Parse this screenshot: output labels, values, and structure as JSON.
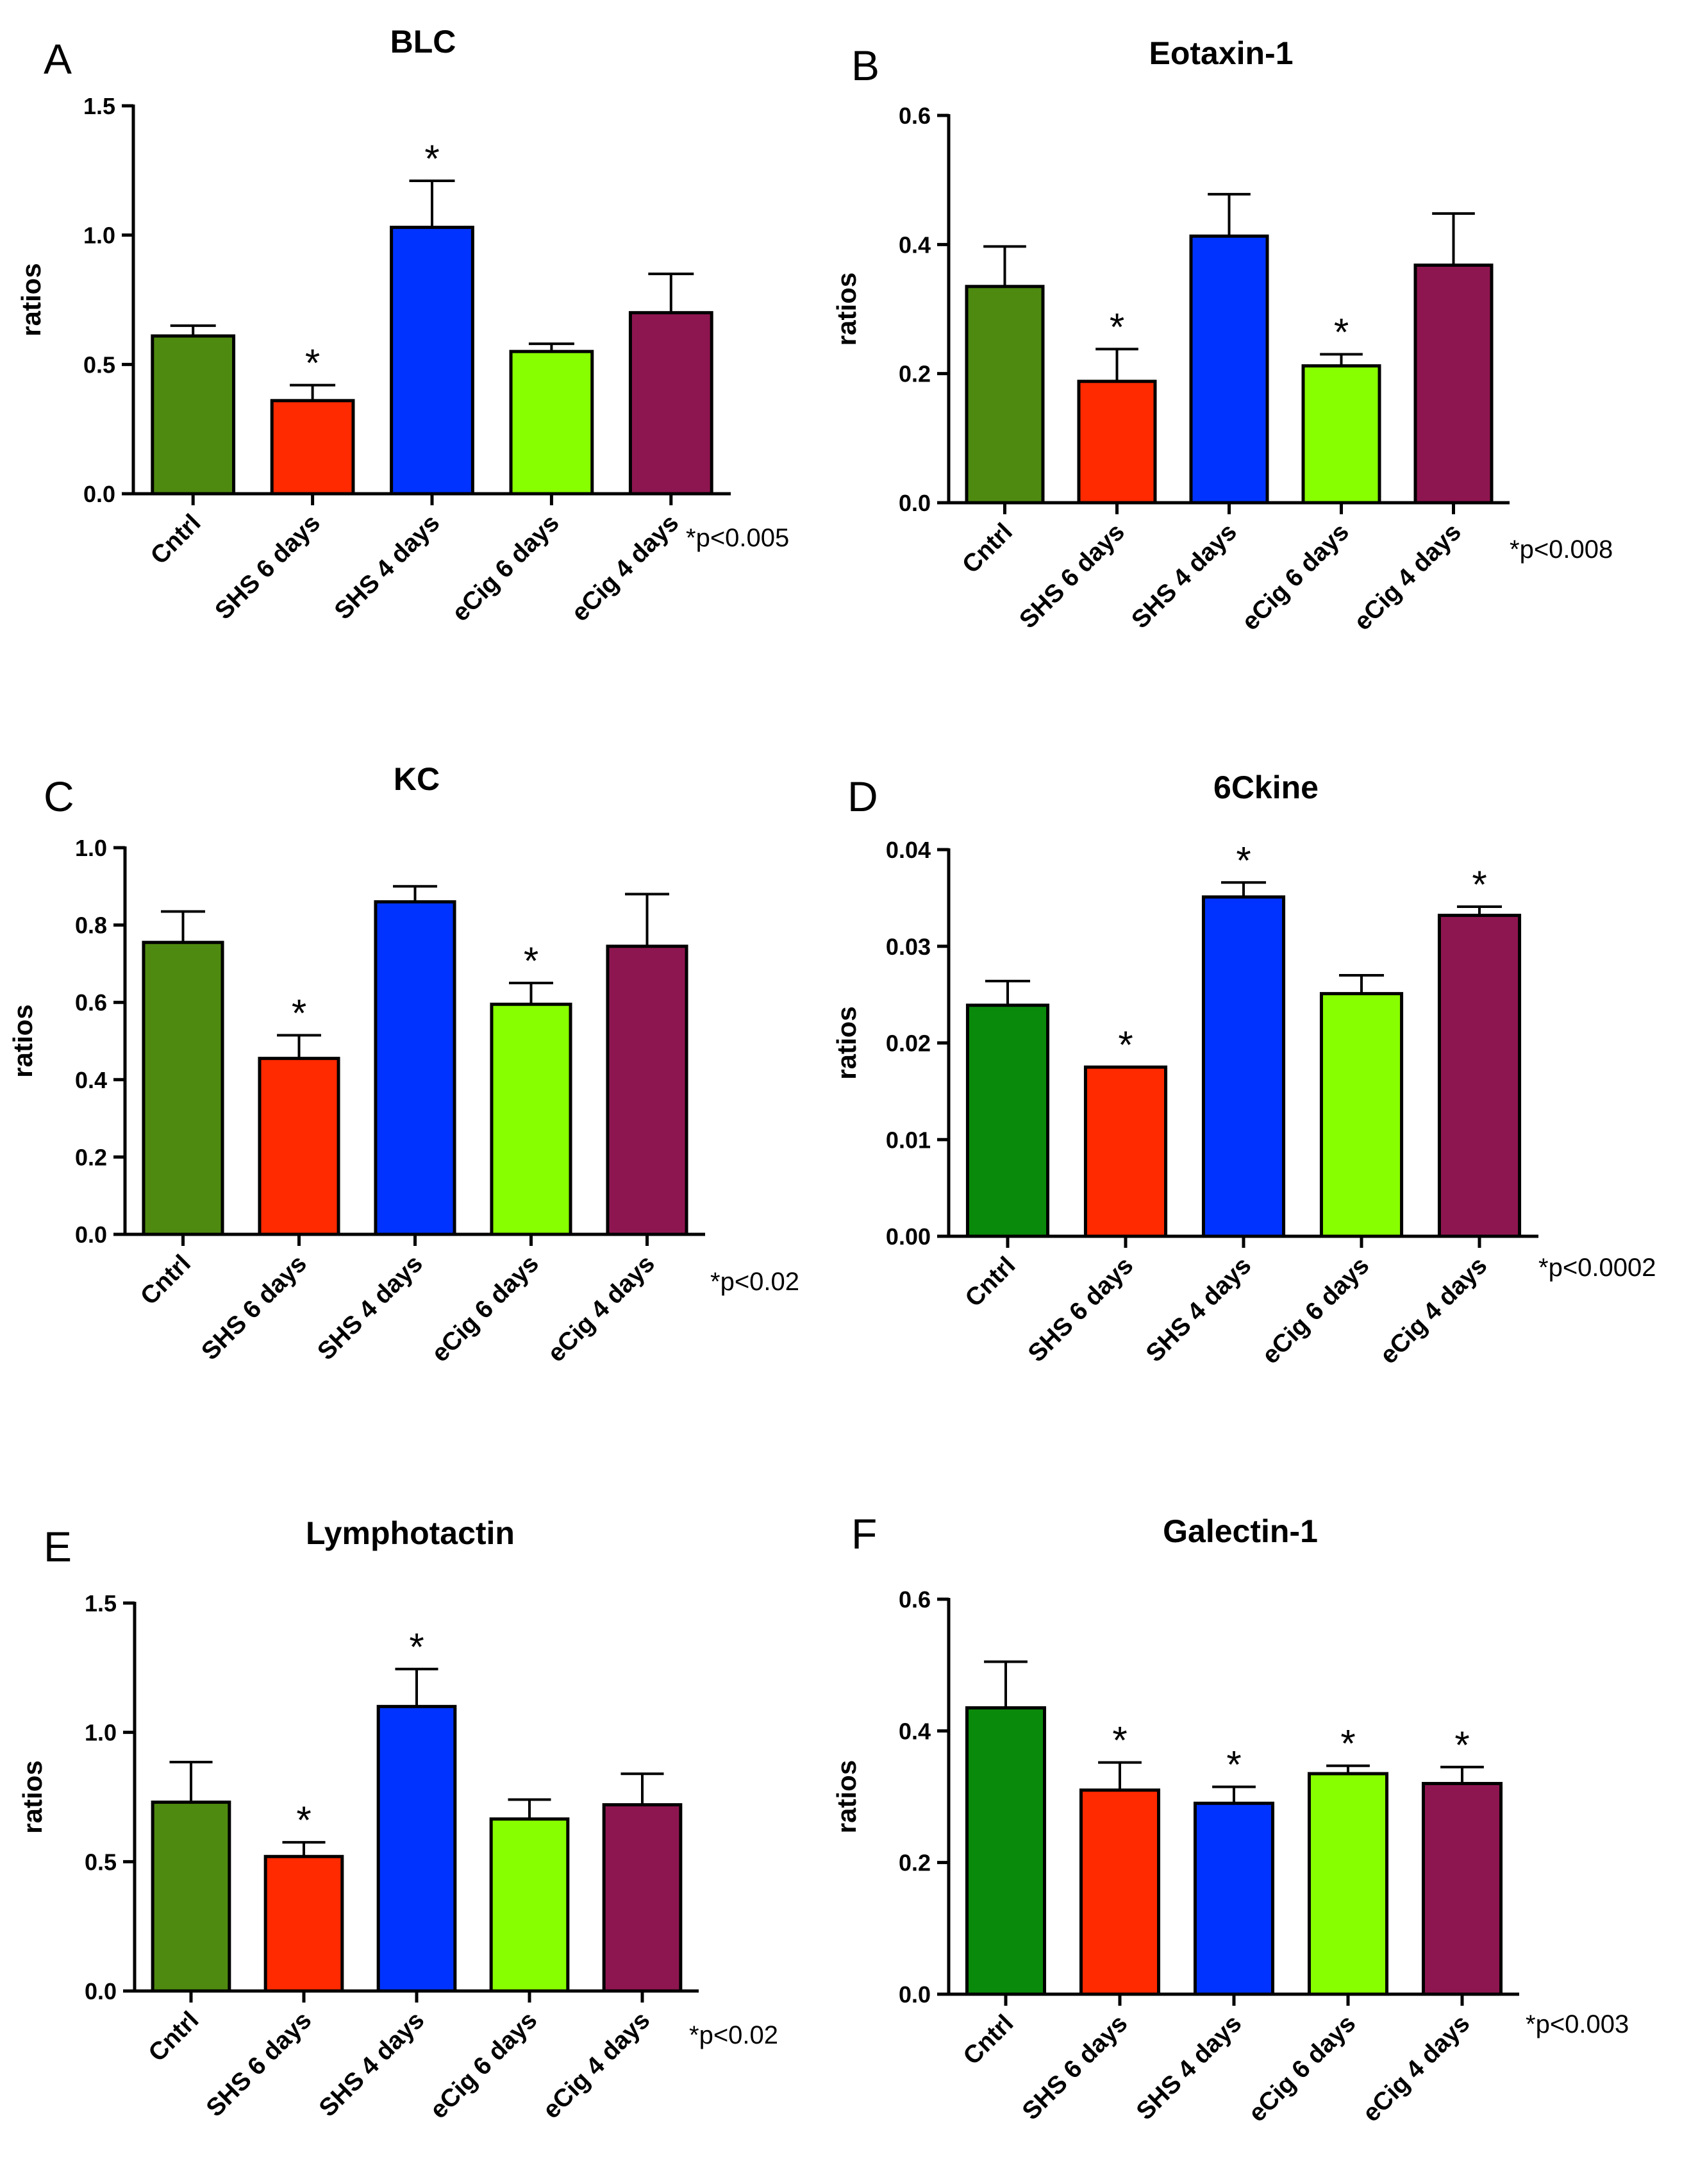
{
  "categories": [
    "Cntrl",
    "SHS 6 days",
    "SHS 4 days",
    "eCig 6 days",
    "eCig 4 days"
  ],
  "colors": {
    "cntrl_olive": "#4f8a10",
    "cntrl_green": "#0a8a0a",
    "shs6": "#ff2a00",
    "shs4": "#0033ff",
    "ecig6": "#88ff00",
    "ecig4": "#8e1650"
  },
  "chart_data": [
    {
      "panel": "A",
      "title": "BLC",
      "type": "bar",
      "ylabel": "ratios",
      "ylim": [
        0,
        1.5
      ],
      "yticks": [
        "0.0",
        "0.5",
        "1.0",
        "1.5"
      ],
      "values": [
        0.61,
        0.36,
        1.03,
        0.55,
        0.7
      ],
      "errors": [
        0.04,
        0.06,
        0.18,
        0.03,
        0.15
      ],
      "significant": [
        false,
        true,
        true,
        false,
        false
      ],
      "bar_colors": [
        "#4f8a10",
        "#ff2a00",
        "#0033ff",
        "#88ff00",
        "#8e1650"
      ],
      "pvalue": "*p<0.005"
    },
    {
      "panel": "B",
      "title": "Eotaxin-1",
      "type": "bar",
      "ylabel": "ratios",
      "ylim": [
        0,
        0.6
      ],
      "yticks": [
        "0.0",
        "0.2",
        "0.4",
        "0.6"
      ],
      "values": [
        0.335,
        0.188,
        0.413,
        0.212,
        0.368
      ],
      "errors": [
        0.062,
        0.05,
        0.065,
        0.018,
        0.08
      ],
      "significant": [
        false,
        true,
        false,
        true,
        false
      ],
      "bar_colors": [
        "#4f8a10",
        "#ff2a00",
        "#0033ff",
        "#88ff00",
        "#8e1650"
      ],
      "pvalue": "*p<0.008"
    },
    {
      "panel": "C",
      "title": "KC",
      "type": "bar",
      "ylabel": "ratios",
      "ylim": [
        0,
        1.0
      ],
      "yticks": [
        "0.0",
        "0.2",
        "0.4",
        "0.6",
        "0.8",
        "1.0"
      ],
      "values": [
        0.755,
        0.455,
        0.86,
        0.595,
        0.745
      ],
      "errors": [
        0.08,
        0.06,
        0.04,
        0.055,
        0.135
      ],
      "significant": [
        false,
        true,
        false,
        true,
        false
      ],
      "bar_colors": [
        "#4f8a10",
        "#ff2a00",
        "#0033ff",
        "#88ff00",
        "#8e1650"
      ],
      "pvalue": "*p<0.02"
    },
    {
      "panel": "D",
      "title": "6Ckine",
      "type": "bar",
      "ylabel": "ratios",
      "ylim": [
        0,
        0.04
      ],
      "yticks": [
        "0.00",
        "0.01",
        "0.02",
        "0.03",
        "0.04"
      ],
      "values": [
        0.0239,
        0.0175,
        0.0351,
        0.0251,
        0.0332
      ],
      "errors": [
        0.0025,
        0.0,
        0.0015,
        0.0019,
        0.0009
      ],
      "significant": [
        false,
        true,
        true,
        false,
        true
      ],
      "bar_colors": [
        "#0a8a0a",
        "#ff2a00",
        "#0033ff",
        "#88ff00",
        "#8e1650"
      ],
      "pvalue": "*p<0.0002"
    },
    {
      "panel": "E",
      "title": "Lymphotactin",
      "type": "bar",
      "ylabel": "ratios",
      "ylim": [
        0,
        1.5
      ],
      "yticks": [
        "0.0",
        "0.5",
        "1.0",
        "1.5"
      ],
      "values": [
        0.73,
        0.52,
        1.1,
        0.665,
        0.72
      ],
      "errors": [
        0.155,
        0.055,
        0.145,
        0.075,
        0.12
      ],
      "significant": [
        false,
        true,
        true,
        false,
        false
      ],
      "bar_colors": [
        "#4f8a10",
        "#ff2a00",
        "#0033ff",
        "#88ff00",
        "#8e1650"
      ],
      "pvalue": "*p<0.02"
    },
    {
      "panel": "F",
      "title": "Galectin-1",
      "type": "bar",
      "ylabel": "ratios",
      "ylim": [
        0,
        0.6
      ],
      "yticks": [
        "0.0",
        "0.2",
        "0.4",
        "0.6"
      ],
      "values": [
        0.435,
        0.31,
        0.29,
        0.335,
        0.32
      ],
      "errors": [
        0.07,
        0.042,
        0.025,
        0.012,
        0.025
      ],
      "significant": [
        false,
        true,
        true,
        true,
        true
      ],
      "bar_colors": [
        "#0a8a0a",
        "#ff2a00",
        "#0033ff",
        "#88ff00",
        "#8e1650"
      ],
      "pvalue": "*p<0.003"
    }
  ]
}
